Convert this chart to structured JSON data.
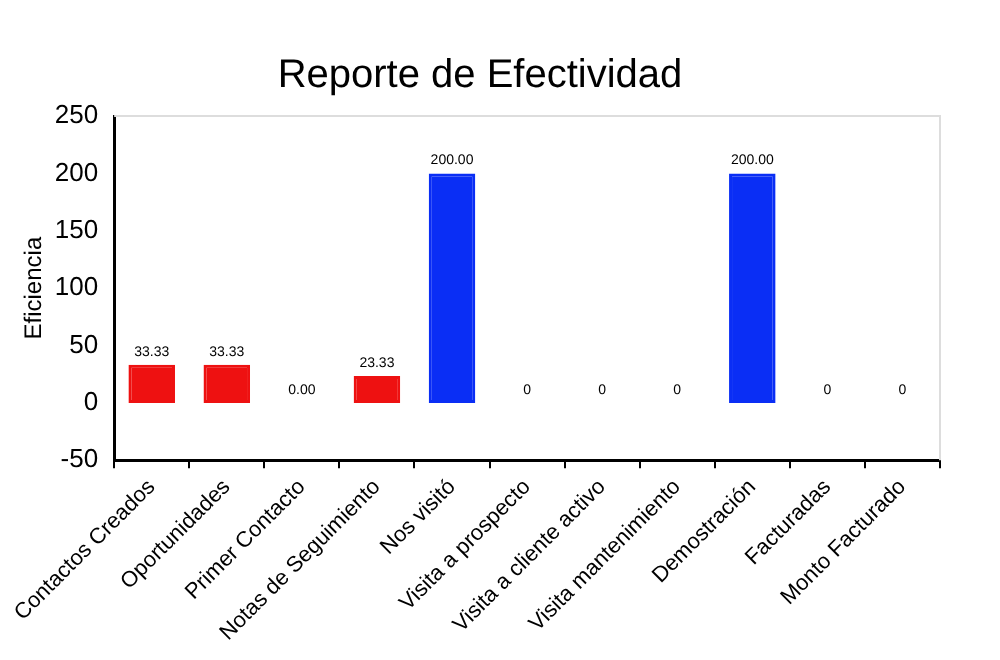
{
  "chart_data": {
    "type": "bar",
    "title": "Reporte de Efectividad",
    "ylabel": "Eficiencia",
    "categories": [
      "Contactos Creados",
      "Oportunidades",
      "Primer Contacto",
      "Notas de Seguimiento",
      "Nos visitó",
      "Visita a prospecto",
      "Visita a cliente activo",
      "Visita mantenimiento",
      "Demostración",
      "Facturadas",
      "Monto Facturado"
    ],
    "values": [
      33.33,
      33.33,
      0,
      23.33,
      200,
      0,
      0,
      0,
      200,
      0,
      0
    ],
    "value_labels": [
      "33.33",
      "33.33",
      "0.00",
      "23.33",
      "200.00",
      "0",
      "0",
      "0",
      "200.00",
      "0",
      "0"
    ],
    "colors": [
      "#ee1111",
      "#ee1111",
      "#ee1111",
      "#ee1111",
      "#0a2ef5",
      "#ee1111",
      "#ee1111",
      "#ee1111",
      "#0a2ef5",
      "#ee1111",
      "#ee1111"
    ],
    "ylim": [
      -50,
      250
    ],
    "yticks": [
      -50,
      0,
      50,
      100,
      150,
      200,
      250
    ],
    "grid": false,
    "legend": false
  }
}
